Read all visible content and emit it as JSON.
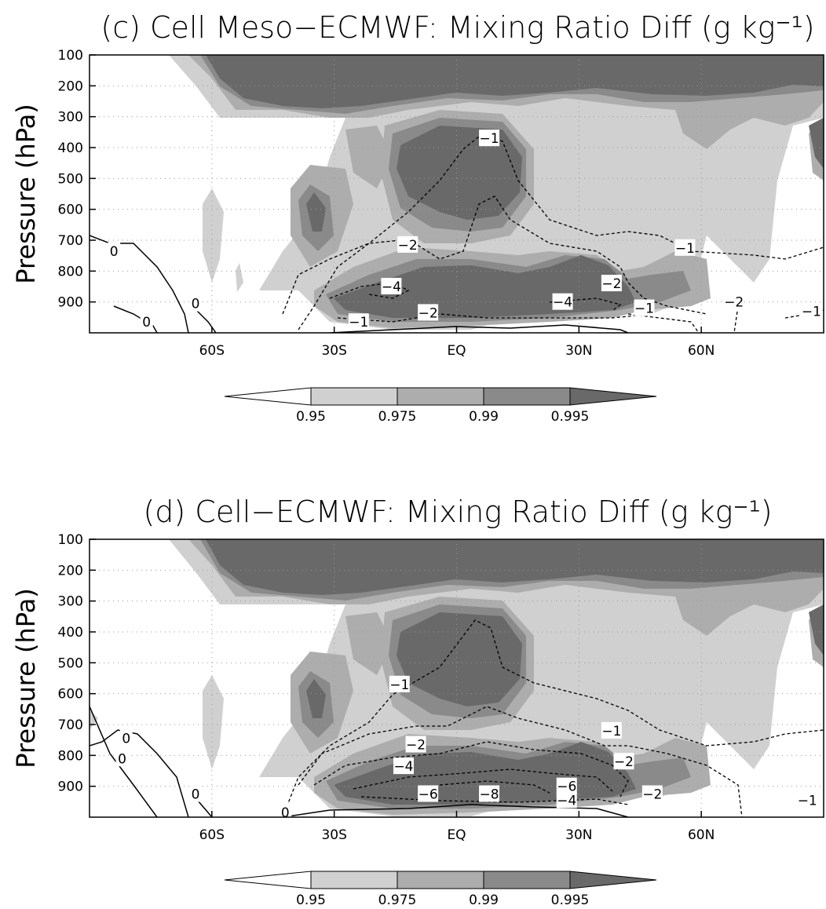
{
  "chart_data": [
    {
      "id": "c",
      "type": "contour",
      "title": "(c) Cell Meso−ECMWF: Mixing Ratio Diff (g kg⁻¹)",
      "ylabel": "Pressure (hPa)",
      "xlabel": "",
      "y_ticks": [
        "100",
        "200",
        "300",
        "400",
        "500",
        "600",
        "700",
        "800",
        "900"
      ],
      "x_ticks": [
        "60S",
        "30S",
        "EQ",
        "30N",
        "60N"
      ],
      "ylim": [
        1000,
        100
      ],
      "xlim": [
        -90,
        90
      ],
      "grid": true,
      "shading_levels": [
        "0.95",
        "0.975",
        "0.99",
        "0.995"
      ],
      "shading_colors": [
        "#ffffff",
        "#d0d0d0",
        "#adadad",
        "#8a8a8a",
        "#696969"
      ],
      "contour_labels": [
        {
          "text": "−1",
          "lon": 8,
          "p": 370
        },
        {
          "text": "−2",
          "lon": -12,
          "p": 715
        },
        {
          "text": "−1",
          "lon": 56,
          "p": 725
        },
        {
          "text": "−4",
          "lon": -16,
          "p": 850
        },
        {
          "text": "−2",
          "lon": 38,
          "p": 840
        },
        {
          "text": "−4",
          "lon": 26,
          "p": 900
        },
        {
          "text": "−1",
          "lon": 46,
          "p": 920
        },
        {
          "text": "−2",
          "lon": 68,
          "p": 900
        },
        {
          "text": "−1",
          "lon": -24,
          "p": 965
        },
        {
          "text": "−2",
          "lon": -7,
          "p": 935
        },
        {
          "text": "−1",
          "lon": 87,
          "p": 930
        },
        {
          "text": "0",
          "lon": -84,
          "p": 735
        },
        {
          "text": "0",
          "lon": -64,
          "p": 905
        },
        {
          "text": "0",
          "lon": -76,
          "p": 965
        }
      ]
    },
    {
      "id": "d",
      "type": "contour",
      "title": "(d) Cell−ECMWF: Mixing Ratio Diff (g kg⁻¹)",
      "ylabel": "Pressure (hPa)",
      "xlabel": "",
      "y_ticks": [
        "100",
        "200",
        "300",
        "400",
        "500",
        "600",
        "700",
        "800",
        "900"
      ],
      "x_ticks": [
        "60S",
        "30S",
        "EQ",
        "30N",
        "60N"
      ],
      "ylim": [
        1000,
        100
      ],
      "xlim": [
        -90,
        90
      ],
      "grid": true,
      "shading_levels": [
        "0.95",
        "0.975",
        "0.99",
        "0.995"
      ],
      "shading_colors": [
        "#ffffff",
        "#d0d0d0",
        "#adadad",
        "#8a8a8a",
        "#696969"
      ],
      "contour_labels": [
        {
          "text": "−1",
          "lon": -14,
          "p": 570
        },
        {
          "text": "−1",
          "lon": 38,
          "p": 720
        },
        {
          "text": "−2",
          "lon": -10,
          "p": 765
        },
        {
          "text": "−2",
          "lon": 41,
          "p": 820
        },
        {
          "text": "−4",
          "lon": -13,
          "p": 835
        },
        {
          "text": "−6",
          "lon": -7,
          "p": 925
        },
        {
          "text": "−8",
          "lon": 8,
          "p": 925
        },
        {
          "text": "−6",
          "lon": 27,
          "p": 900
        },
        {
          "text": "−4",
          "lon": 27,
          "p": 945
        },
        {
          "text": "−2",
          "lon": 48,
          "p": 925
        },
        {
          "text": "−1",
          "lon": 86,
          "p": 945
        },
        {
          "text": "0",
          "lon": -81,
          "p": 745
        },
        {
          "text": "0",
          "lon": -82,
          "p": 810
        },
        {
          "text": "0",
          "lon": -64,
          "p": 925
        },
        {
          "text": "0",
          "lon": -42,
          "p": 985
        }
      ]
    }
  ]
}
